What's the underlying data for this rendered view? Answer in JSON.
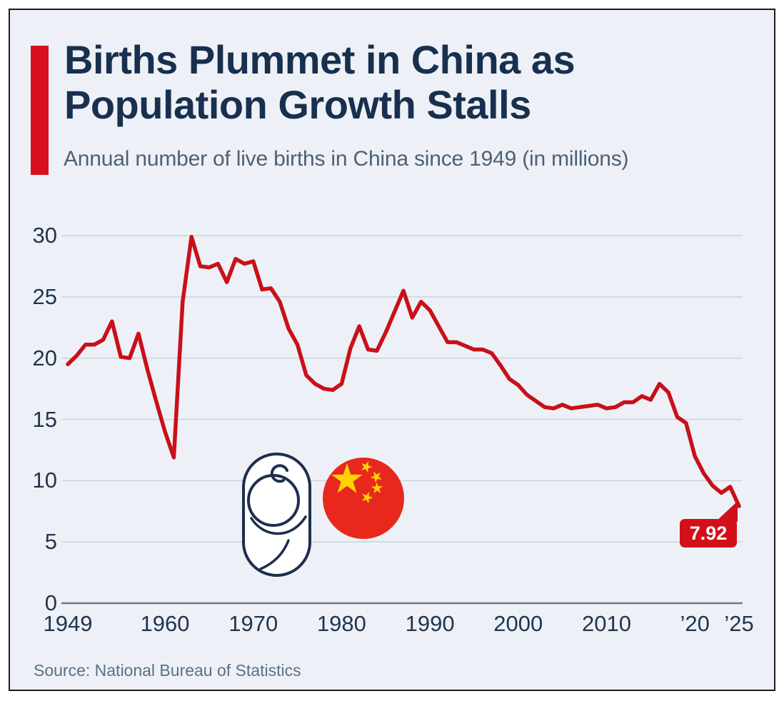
{
  "header": {
    "title_line1": "Births Plummet in China as",
    "title_line2": "Population Growth Stalls",
    "subtitle": "Annual number of live births in China since 1949 (in millions)"
  },
  "footer": {
    "source": "Source: National Bureau of Statistics"
  },
  "colors": {
    "accent_red": "#d8101e",
    "line_red": "#c9101a",
    "badge_red": "#d21019",
    "flag_red": "#e8281d",
    "star_yellow": "#ffd400",
    "title_navy": "#18304e",
    "icon_outline_navy": "#1d2f4e",
    "card_background": "#edf1f7",
    "gridline_gray": "#ccd2dc",
    "axis_gray": "#6d7787"
  },
  "icons": {
    "baby": "baby-swaddle-icon",
    "flag": "china-flag-icon"
  },
  "chart_data": {
    "type": "line",
    "title": "Births Plummet in China as Population Growth Stalls",
    "subtitle": "Annual number of live births in China since 1949 (in millions)",
    "unit": "millions",
    "years_range": [
      1949,
      2025
    ],
    "values": [
      19.5,
      20.2,
      21.1,
      21.1,
      21.5,
      23.0,
      20.1,
      20.0,
      22.0,
      19.1,
      16.5,
      14.0,
      11.9,
      24.6,
      29.9,
      27.5,
      27.4,
      27.7,
      26.2,
      28.1,
      27.7,
      27.9,
      25.6,
      25.7,
      24.6,
      22.4,
      21.1,
      18.6,
      17.9,
      17.5,
      17.4,
      17.9,
      20.8,
      22.6,
      20.7,
      20.6,
      22.1,
      23.8,
      25.5,
      23.3,
      24.6,
      23.9,
      22.6,
      21.3,
      21.3,
      21.0,
      20.7,
      20.7,
      20.4,
      19.4,
      18.3,
      17.8,
      17.0,
      16.5,
      16.0,
      15.9,
      16.2,
      15.9,
      16.0,
      16.1,
      16.2,
      15.9,
      16.0,
      16.4,
      16.4,
      16.9,
      16.6,
      17.9,
      17.2,
      15.2,
      14.7,
      12.0,
      10.6,
      9.6,
      9.0,
      9.5,
      7.92
    ],
    "yticks": [
      0,
      5,
      10,
      15,
      20,
      25,
      30
    ],
    "ylim": [
      0,
      30
    ],
    "xticks": [
      {
        "year": 1949,
        "label": "1949"
      },
      {
        "year": 1960,
        "label": "1960"
      },
      {
        "year": 1970,
        "label": "1970"
      },
      {
        "year": 1980,
        "label": "1980"
      },
      {
        "year": 1990,
        "label": "1990"
      },
      {
        "year": 2000,
        "label": "2000"
      },
      {
        "year": 2010,
        "label": "2010"
      },
      {
        "year": 2020,
        "label": "’20"
      },
      {
        "year": 2025,
        "label": "’25"
      }
    ],
    "grid": true,
    "legend": "none",
    "line_color": "#c9101a",
    "end_label": "7.92",
    "end_label_year": 2025
  }
}
